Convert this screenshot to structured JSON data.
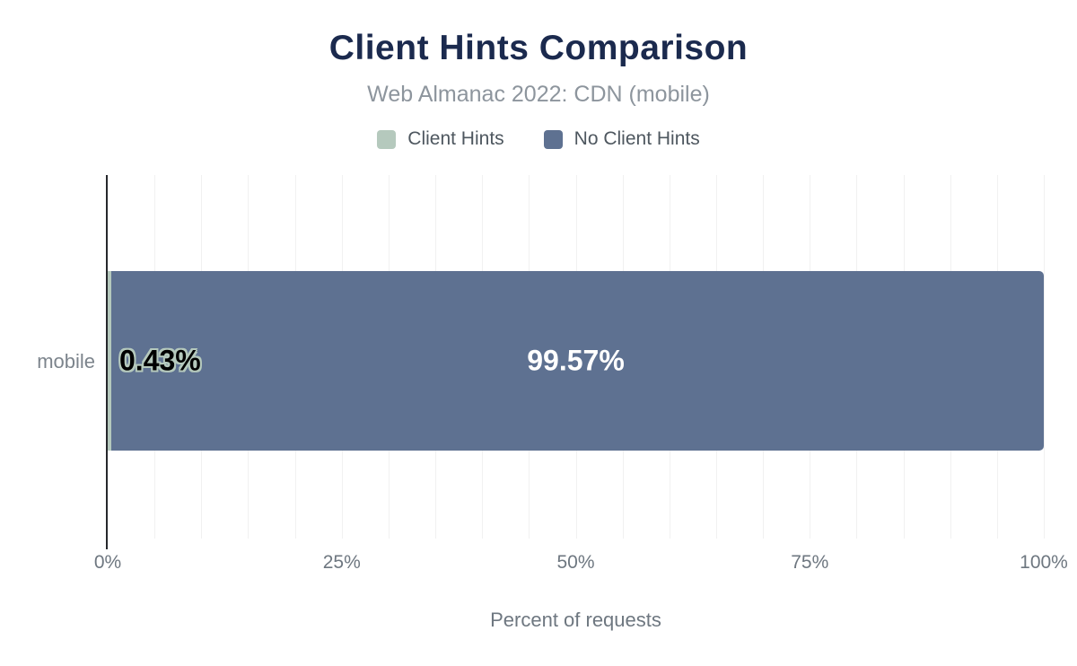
{
  "chart_data": {
    "type": "bar",
    "orientation": "horizontal",
    "stacked": true,
    "title": "Client Hints Comparison",
    "subtitle": "Web Almanac 2022: CDN (mobile)",
    "categories": [
      "mobile"
    ],
    "series": [
      {
        "name": "Client Hints",
        "values": [
          0.43
        ],
        "label": "0.43%",
        "color": "#b5c9bd"
      },
      {
        "name": "No Client Hints",
        "values": [
          99.57
        ],
        "label": "99.57%",
        "color": "#5e7191"
      }
    ],
    "xlabel": "Percent of requests",
    "x_ticks": [
      "0%",
      "25%",
      "50%",
      "75%",
      "100%"
    ],
    "xlim": [
      0,
      100
    ],
    "grid": "vertical minor gridlines every 5%",
    "legend_position": "top"
  },
  "colors": {
    "title_text": "#1b2a4e",
    "subtitle_text": "#8d959d",
    "legend_text": "#4e575f",
    "axis_text": "#6e7780",
    "category_text": "#7c848c",
    "gridline": "#f1f1f1",
    "axis_line": "#26282c"
  }
}
